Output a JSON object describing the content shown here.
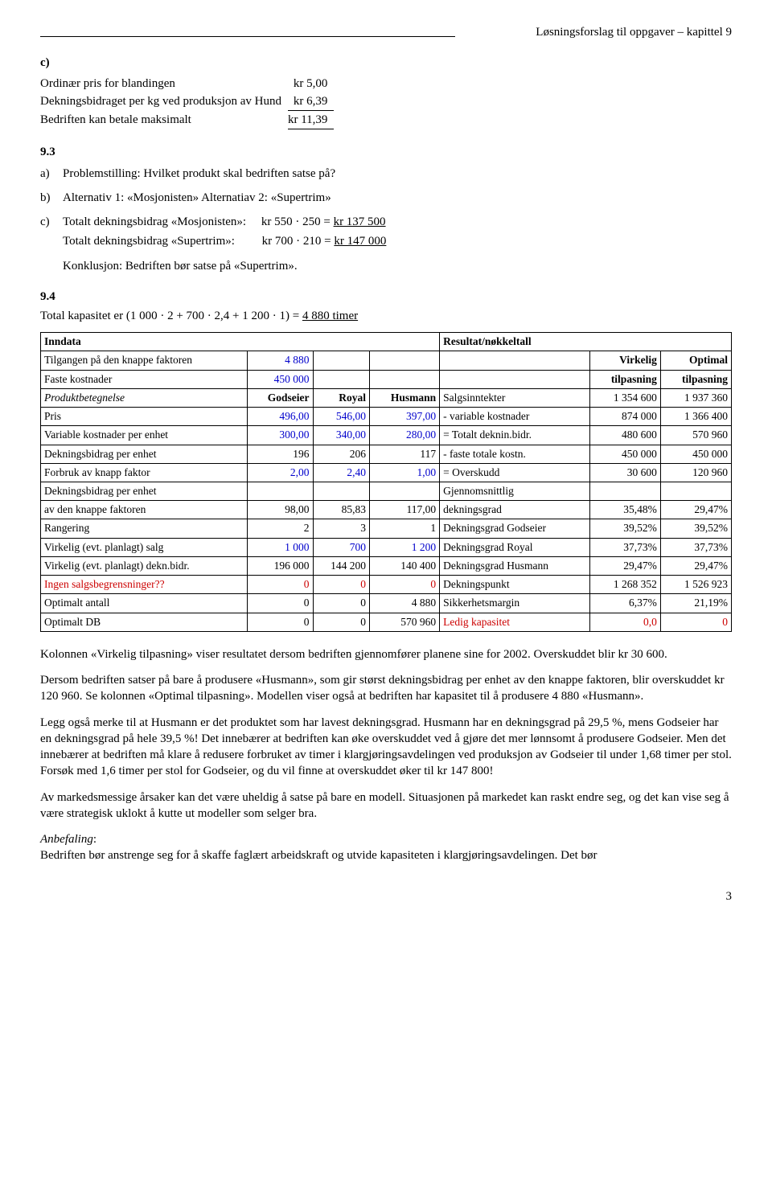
{
  "header": {
    "rule_width_pct": 60,
    "right_text": "Løsningsforslag til oppgaver – kapittel 9"
  },
  "section_c": {
    "letter": "c)",
    "row1_label": "Ordinær pris for blandingen",
    "row1_val": "kr   5,00",
    "row2_label": "Dekningsbidraget per kg ved produksjon av Hund",
    "row2_val": "kr   6,39",
    "row3_label": "Bedriften kan betale maksimalt",
    "row3_val": "kr 11,39"
  },
  "section_93": {
    "heading": "9.3",
    "a_prefix": "a)",
    "a_text": "Problemstilling:  Hvilket produkt skal bedriften satse på?",
    "b_prefix": "b)",
    "b_text": "Alternativ 1: «Mosjonisten»      Alternatiav 2: «Supertrim»",
    "c_prefix": "c)",
    "c_row1_label": "Totalt dekningsbidrag «Mosjonisten»:",
    "c_row1_calc": "kr 550 · 250  = ",
    "c_row1_val": "kr 137 500",
    "c_row2_label": "Totalt dekningsbidrag «Supertrim»:",
    "c_row2_calc": "kr 700 · 210  = ",
    "c_row2_val": "kr 147 000",
    "c_conclusion": "Konklusjon: Bedriften bør satse på «Supertrim»."
  },
  "section_94": {
    "heading": "9.4",
    "intro_prefix": "Total kapasitet er (1 000 · 2 + 700 · 2,4 + 1 200 · 1) = ",
    "intro_val": "4 880 timer",
    "left_header": "Inndata",
    "right_header": "Resultat/nøkkeltall",
    "virk_hdr": "Virkelig",
    "opt_hdr": "Optimal",
    "tilp_hdr": "tilpasning",
    "rows_left_meta": [
      {
        "label": "Tilgangen på den knappe faktoren",
        "v1": "4 880"
      },
      {
        "label": "Faste kostnader",
        "v1": "450 000"
      }
    ],
    "product_hdr": {
      "c0": "Produktbetegnelse",
      "c1": "Godseier",
      "c2": "Royal",
      "c3": "Husmann"
    },
    "rows_left": [
      {
        "label": "Pris",
        "g": "496,00",
        "r": "546,00",
        "h": "397,00",
        "blue": true
      },
      {
        "label": "Variable kostnader per enhet",
        "g": "300,00",
        "r": "340,00",
        "h": "280,00",
        "blue": true
      },
      {
        "label": "Dekningsbidrag per enhet",
        "g": "196",
        "r": "206",
        "h": "117"
      },
      {
        "label": "Forbruk av knapp faktor",
        "g": "2,00",
        "r": "2,40",
        "h": "1,00",
        "blue": true
      },
      {
        "label": "Dekningsbidrag per enhet",
        "g": "",
        "r": "",
        "h": ""
      },
      {
        "label": "av den knappe faktoren",
        "g": "98,00",
        "r": "85,83",
        "h": "117,00"
      },
      {
        "label": "Rangering",
        "g": "2",
        "r": "3",
        "h": "1"
      },
      {
        "label": "Virkelig (evt. planlagt) salg",
        "g": "1 000",
        "r": "700",
        "h": "1 200",
        "blue": true
      },
      {
        "label": "Virkelig (evt. planlagt) dekn.bidr.",
        "g": "196 000",
        "r": "144 200",
        "h": "140 400"
      },
      {
        "label": "Ingen salgsbegrensninger??",
        "g": "0",
        "r": "0",
        "h": "0",
        "red": true
      },
      {
        "label": "Optimalt antall",
        "g": "0",
        "r": "0",
        "h": "4 880"
      },
      {
        "label": "Optimalt DB",
        "g": "0",
        "r": "0",
        "h": "570 960"
      }
    ],
    "rows_right": [
      {
        "label": "Salgsinntekter",
        "v": "1 354 600",
        "o": "1 937 360"
      },
      {
        "label": "- variable kostnader",
        "v": "874 000",
        "o": "1 366 400"
      },
      {
        "label": "= Totalt deknin.bidr.",
        "v": "480 600",
        "o": "570 960"
      },
      {
        "label": "- faste totale kostn.",
        "v": "450 000",
        "o": "450 000"
      },
      {
        "label": "= Overskudd",
        "v": "30 600",
        "o": "120 960"
      },
      {
        "label": "Gjennomsnittlig",
        "v": "",
        "o": ""
      },
      {
        "label": "dekningsgrad",
        "v": "35,48%",
        "o": "29,47%"
      },
      {
        "label": "Dekningsgrad Godseier",
        "v": "39,52%",
        "o": "39,52%"
      },
      {
        "label": "Dekningsgrad Royal",
        "v": "37,73%",
        "o": "37,73%"
      },
      {
        "label": "Dekningsgrad Husmann",
        "v": "29,47%",
        "o": "29,47%"
      },
      {
        "label": "Dekningspunkt",
        "v": "1 268 352",
        "o": "1 526 923"
      },
      {
        "label": "Sikkerhetsmargin",
        "v": "6,37%",
        "o": "21,19%"
      },
      {
        "label": "Ledig kapasitet",
        "v": "0,0",
        "o": "0",
        "red": true
      }
    ]
  },
  "paras": {
    "p1": "Kolonnen «Virkelig tilpasning» viser resultatet dersom bedriften gjennomfører planene sine for 2002. Overskuddet blir kr 30 600.",
    "p2": "Dersom bedriften satser på bare å produsere «Husmann», som gir størst dekningsbidrag per enhet av den knappe faktoren, blir overskuddet kr 120 960. Se kolonnen «Optimal tilpasning». Modellen viser også at bedriften har kapasitet til å produsere 4 880 «Husmann».",
    "p3": "Legg også merke til at Husmann er det produktet som har lavest dekningsgrad. Husmann har en dekningsgrad på 29,5 %, mens Godseier har en dekningsgrad på hele 39,5 %! Det innebærer at bedriften kan øke overskuddet ved å gjøre det mer lønnsomt å produsere Godseier. Men det innebærer at bedriften må klare å redusere forbruket av timer i klargjøringsavdelingen ved produksjon av Godseier til under 1,68 timer per stol. Forsøk med 1,6 timer per stol for Godseier, og du vil finne at overskuddet øker til kr 147 800!",
    "p4": "Av markedsmessige årsaker kan det være uheldig å satse på bare en modell. Situasjonen på markedet kan raskt endre seg, og det kan vise seg å være strategisk uklokt å kutte ut modeller som selger bra.",
    "anbef_label": "Anbefaling",
    "p5": "Bedriften bør anstrenge seg for å skaffe faglært arbeidskraft og utvide kapasiteten i klargjøringsavdelingen. Det bør"
  },
  "page_number": "3"
}
